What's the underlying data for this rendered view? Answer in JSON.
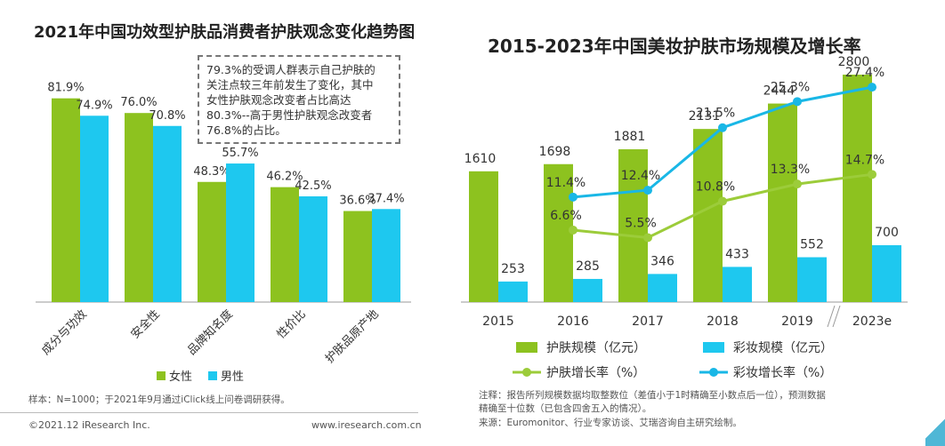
{
  "left": {
    "title": "2021年中国功效型护肤品消费者护肤观念变化趋势图",
    "callout_lines": [
      "79.3%的受调人群表示自己护肤的",
      "关注点较三年前发生了变化，其中",
      "女性护肤观念改变者占比高达",
      "80.3%--高于男性护肤观念改变者",
      "76.8%的占比。"
    ],
    "sample_note": "样本：N=1000；于2021年9月通过iClick线上问卷调研获得。",
    "copyright": "©2021.12 iResearch Inc.",
    "website": "www.iresearch.com.cn"
  },
  "right": {
    "title": "2015-2023年中国美妆护肤市场规模及增长率",
    "note_line1": "注释：报告所列规模数据均取整数位（差值小于1时精确至小数点后一位），预测数据",
    "note_line2": "精确至十位数（已包含四舍五入的情况）。",
    "source": "来源：Euromonitor、行业专家访谈、艾瑞咨询自主研究绘制。"
  },
  "colors": {
    "green": "#8dc21f",
    "blue": "#1ec8ef",
    "line_green": "#9ccc3a",
    "line_blue": "#19b7e6",
    "axis": "#999999"
  },
  "chart_data": [
    {
      "type": "bar",
      "title": "2021年中国功效型护肤品消费者护肤观念变化趋势图",
      "categories": [
        "成分与功效",
        "安全性",
        "品牌知名度",
        "性价比",
        "护肤品原产地"
      ],
      "series": [
        {
          "name": "女性",
          "values": [
            81.9,
            76.0,
            48.3,
            46.2,
            36.6
          ],
          "labels": [
            "81.9%",
            "76.0%",
            "48.3%",
            "46.2%",
            "36.6%"
          ]
        },
        {
          "name": "男性",
          "values": [
            74.9,
            70.8,
            55.7,
            42.5,
            37.4
          ],
          "labels": [
            "74.9%",
            "70.8%",
            "55.7%",
            "42.5%",
            "37.4%"
          ]
        }
      ],
      "ylim": [
        0,
        100
      ],
      "legend": [
        "女性",
        "男性"
      ]
    },
    {
      "type": "bar+line",
      "title": "2015-2023年中国美妆护肤市场规模及增长率",
      "categories": [
        "2015",
        "2016",
        "2017",
        "2018",
        "2019",
        "2023e"
      ],
      "bars": [
        {
          "name": "护肤规模（亿元）",
          "values": [
            1610,
            1698,
            1881,
            2131,
            2444,
            2800
          ]
        },
        {
          "name": "彩妆规模（亿元）",
          "values": [
            253,
            285,
            346,
            433,
            552,
            700
          ]
        }
      ],
      "lines": [
        {
          "name": "护肤增长率（%）",
          "x": [
            "2016",
            "2017",
            "2018",
            "2019",
            "2023e"
          ],
          "values": [
            6.6,
            5.5,
            10.8,
            13.3,
            14.7
          ],
          "labels": [
            "6.6%",
            "5.5%",
            "10.8%",
            "13.3%",
            "14.7%"
          ]
        },
        {
          "name": "彩妆增长率（%）",
          "x": [
            "2016",
            "2017",
            "2018",
            "2019",
            "2023e"
          ],
          "values": [
            11.4,
            12.4,
            21.5,
            25.3,
            27.4
          ],
          "labels": [
            "11.4%",
            "12.4%",
            "21.5%",
            "25.3%",
            "27.4%"
          ]
        }
      ],
      "ylim": [
        0,
        2800
      ],
      "legend": [
        "护肤规模（亿元）",
        "彩妆规模（亿元）",
        "护肤增长率（%）",
        "彩妆增长率（%）"
      ]
    }
  ]
}
